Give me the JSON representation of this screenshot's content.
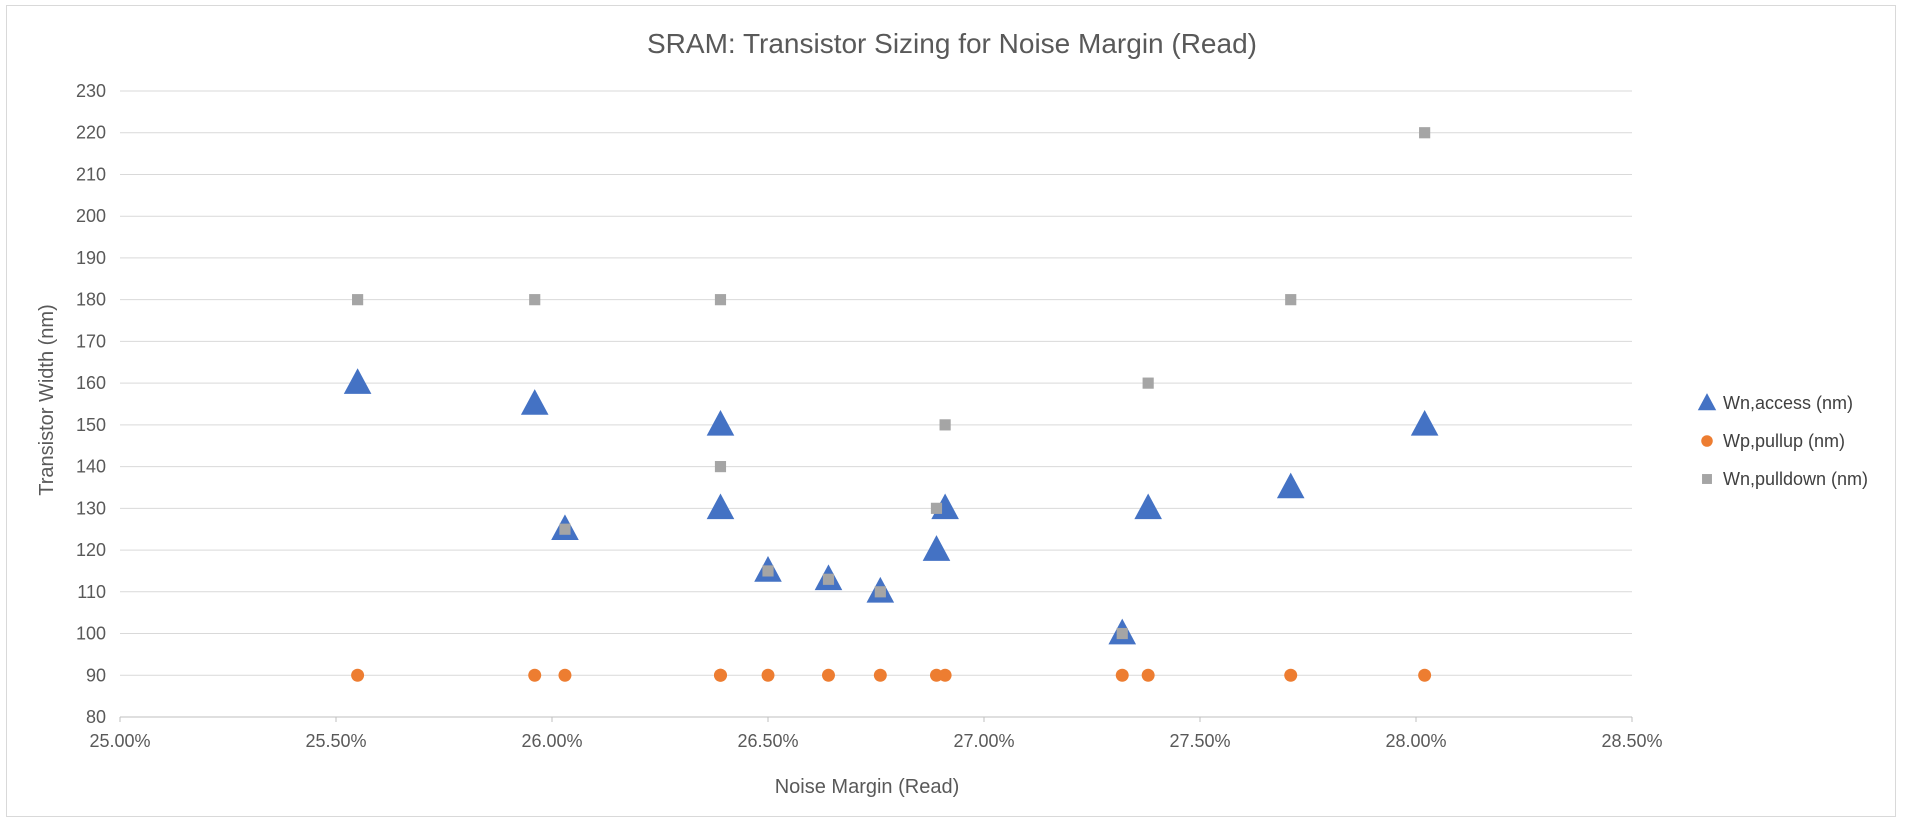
{
  "chart_data": {
    "type": "scatter",
    "title": "SRAM: Transistor Sizing for Noise Margin (Read)",
    "xlabel": "Noise Margin (Read)",
    "ylabel": "Transistor Width (nm)",
    "xlim": [
      0.25,
      0.285
    ],
    "ylim": [
      80,
      230
    ],
    "x_ticks": [
      "25.00%",
      "25.50%",
      "26.00%",
      "26.50%",
      "27.00%",
      "27.50%",
      "28.00%",
      "28.50%"
    ],
    "y_ticks": [
      "80",
      "90",
      "100",
      "110",
      "120",
      "130",
      "140",
      "150",
      "160",
      "170",
      "180",
      "190",
      "200",
      "210",
      "220",
      "230"
    ],
    "grid": true,
    "legend_position": "right",
    "x": [
      0.2555,
      0.2596,
      0.2603,
      0.2639,
      0.2639,
      0.265,
      0.2664,
      0.2676,
      0.2689,
      0.2691,
      0.2732,
      0.2738,
      0.2771,
      0.2802
    ],
    "series": [
      {
        "name": "Wn,access (nm)",
        "marker": "triangle",
        "color": "#4472c4",
        "values": [
          160,
          155,
          125,
          150,
          130,
          115,
          113,
          110,
          120,
          130,
          100,
          130,
          135,
          150
        ]
      },
      {
        "name": "Wp,pullup (nm)",
        "marker": "circle",
        "color": "#ed7d31",
        "values": [
          90,
          90,
          90,
          90,
          90,
          90,
          90,
          90,
          90,
          90,
          90,
          90,
          90,
          90
        ]
      },
      {
        "name": "Wn,pulldown (nm)",
        "marker": "square",
        "color": "#a5a5a5",
        "values": [
          180,
          180,
          125,
          180,
          140,
          115,
          113,
          110,
          130,
          150,
          100,
          160,
          180,
          220
        ]
      }
    ]
  }
}
